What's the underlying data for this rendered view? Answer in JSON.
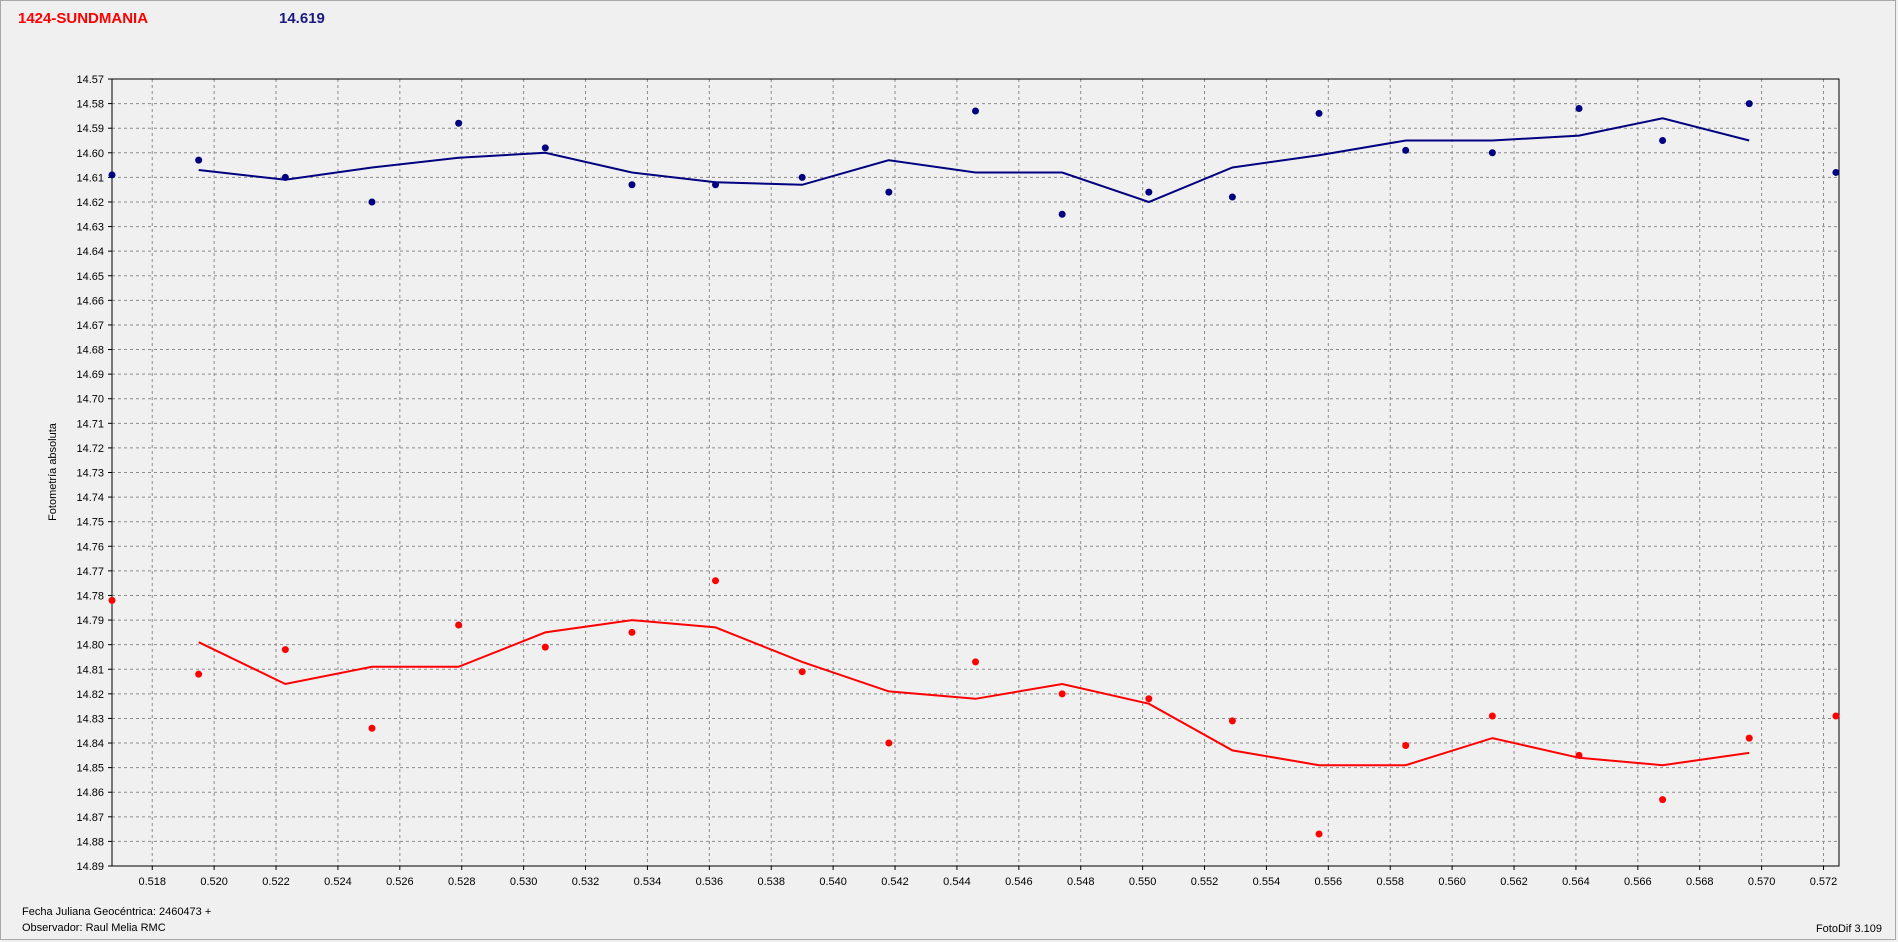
{
  "header": {
    "object_name": "1424-SUNDMANIA",
    "mean_value": "14.619"
  },
  "footer": {
    "julian_date": "Fecha Juliana Geocéntrica: 2460473 +",
    "observer": "Observador: Raul Melia RMC",
    "software": "FotoDif 3.109"
  },
  "colors": {
    "series_blue": "#000080",
    "series_red": "#ff0000",
    "title_red": "#ff0000",
    "value_blue": "#1a1a80"
  },
  "chart_data": {
    "type": "scatter",
    "title": "",
    "xlabel": "",
    "ylabel": "Fotometría absoluta",
    "xlim": [
      0.5167,
      0.5725
    ],
    "ylim": [
      14.57,
      14.89
    ],
    "y_inverted": true,
    "grid": true,
    "x_ticks": [
      "0.518",
      "0.520",
      "0.522",
      "0.524",
      "0.526",
      "0.528",
      "0.530",
      "0.532",
      "0.534",
      "0.536",
      "0.538",
      "0.540",
      "0.542",
      "0.544",
      "0.546",
      "0.548",
      "0.550",
      "0.552",
      "0.554",
      "0.556",
      "0.558",
      "0.560",
      "0.562",
      "0.564",
      "0.566",
      "0.568",
      "0.570",
      "0.572"
    ],
    "y_ticks": [
      "14.57",
      "14.58",
      "14.59",
      "14.60",
      "14.61",
      "14.62",
      "14.63",
      "14.64",
      "14.65",
      "14.66",
      "14.67",
      "14.68",
      "14.69",
      "14.70",
      "14.71",
      "14.72",
      "14.73",
      "14.74",
      "14.75",
      "14.76",
      "14.77",
      "14.78",
      "14.79",
      "14.80",
      "14.81",
      "14.82",
      "14.83",
      "14.84",
      "14.85",
      "14.86",
      "14.87",
      "14.88",
      "14.89"
    ],
    "series": [
      {
        "color": "#000080",
        "points": {
          "x": [
            0.5167,
            0.5195,
            0.5223,
            0.5251,
            0.5279,
            0.5307,
            0.5335,
            0.5362,
            0.539,
            0.5418,
            0.5446,
            0.5474,
            0.5502,
            0.5529,
            0.5557,
            0.5585,
            0.5613,
            0.5641,
            0.5668,
            0.5696,
            0.5724
          ],
          "y": [
            14.609,
            14.603,
            14.61,
            14.62,
            14.588,
            14.598,
            14.613,
            14.613,
            14.61,
            14.616,
            14.583,
            14.625,
            14.616,
            14.618,
            14.584,
            14.599,
            14.6,
            14.582,
            14.595,
            14.58,
            14.608
          ]
        },
        "smooth": {
          "x": [
            0.5195,
            0.5223,
            0.5251,
            0.5279,
            0.5307,
            0.5335,
            0.5362,
            0.539,
            0.5418,
            0.5446,
            0.5474,
            0.5502,
            0.5529,
            0.5557,
            0.5585,
            0.5613,
            0.5641,
            0.5668,
            0.5696
          ],
          "y": [
            14.607,
            14.611,
            14.606,
            14.602,
            14.6,
            14.608,
            14.612,
            14.613,
            14.603,
            14.608,
            14.608,
            14.62,
            14.606,
            14.601,
            14.595,
            14.595,
            14.593,
            14.586,
            14.595
          ]
        }
      },
      {
        "color": "#ff0000",
        "points": {
          "x": [
            0.5167,
            0.5195,
            0.5223,
            0.5251,
            0.5279,
            0.5307,
            0.5335,
            0.5362,
            0.539,
            0.5418,
            0.5446,
            0.5474,
            0.5502,
            0.5529,
            0.5557,
            0.5585,
            0.5613,
            0.5641,
            0.5668,
            0.5696,
            0.5724
          ],
          "y": [
            14.782,
            14.812,
            14.802,
            14.834,
            14.792,
            14.801,
            14.795,
            14.774,
            14.811,
            14.84,
            14.807,
            14.82,
            14.822,
            14.831,
            14.877,
            14.841,
            14.829,
            14.845,
            14.863,
            14.838,
            14.829
          ]
        },
        "smooth": {
          "x": [
            0.5195,
            0.5223,
            0.5251,
            0.5279,
            0.5307,
            0.5335,
            0.5362,
            0.539,
            0.5418,
            0.5446,
            0.5474,
            0.5502,
            0.5529,
            0.5557,
            0.5585,
            0.5613,
            0.5641,
            0.5668,
            0.5696
          ],
          "y": [
            14.799,
            14.816,
            14.809,
            14.809,
            14.795,
            14.79,
            14.793,
            14.807,
            14.819,
            14.822,
            14.816,
            14.824,
            14.843,
            14.849,
            14.849,
            14.838,
            14.846,
            14.849,
            14.844
          ]
        }
      }
    ]
  }
}
